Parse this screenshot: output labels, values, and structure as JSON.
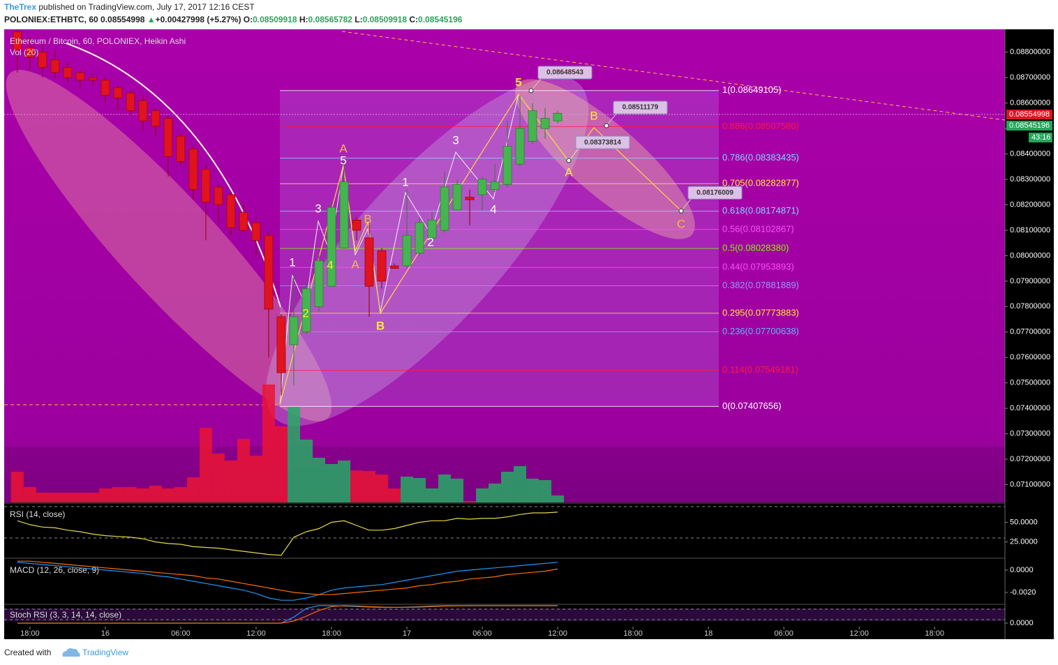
{
  "header": {
    "author": "TheTrex",
    "published": "published on TradingView.com, July 17, 2017 12:16 CEST",
    "symbol": "POLONIEX:ETHBTC, 60",
    "last": "0.08554998",
    "change_arrow": "▲",
    "change": "+0.00427998 (+5.27%)",
    "ohlc": [
      {
        "label": "O:",
        "value": "0.08509918"
      },
      {
        "label": "H:",
        "value": "0.08565782"
      },
      {
        "label": "L:",
        "value": "0.08509918"
      },
      {
        "label": "C:",
        "value": "0.08545196"
      }
    ]
  },
  "chart_data": [
    {
      "type": "candlestick",
      "title": "Ethereum / Bitcoin, 60, POLONIEX, Heikin Ashi",
      "x": [
        -1,
        0,
        1,
        2,
        3,
        4,
        5,
        6,
        7,
        8,
        9,
        10,
        11,
        12,
        13,
        14,
        15,
        16,
        17,
        18,
        19,
        20,
        21,
        22,
        23,
        24,
        25,
        26,
        27,
        28,
        29,
        30,
        31,
        32,
        33,
        34,
        35,
        36,
        37,
        38,
        39,
        40,
        41,
        42
      ],
      "open": [
        0.0888,
        0.0882,
        0.088,
        0.0877,
        0.0874,
        0.0872,
        0.087,
        0.0869,
        0.0866,
        0.0864,
        0.0861,
        0.0857,
        0.0854,
        0.0847,
        0.0842,
        0.0834,
        0.0827,
        0.0824,
        0.0817,
        0.0813,
        0.0808,
        0.0776,
        0.0765,
        0.077,
        0.078,
        0.0788,
        0.0803,
        0.0814,
        0.0807,
        0.0802,
        0.0796,
        0.0796,
        0.0801,
        0.0807,
        0.081,
        0.0818,
        0.0823,
        0.0824,
        0.0826,
        0.0828,
        0.0836,
        0.0845,
        0.085,
        0.0853
      ],
      "high": [
        0.089,
        0.0886,
        0.0883,
        0.0881,
        0.0876,
        0.0873,
        0.0871,
        0.087,
        0.0867,
        0.0865,
        0.0863,
        0.0858,
        0.0855,
        0.0848,
        0.0843,
        0.0836,
        0.0828,
        0.0825,
        0.082,
        0.0815,
        0.0809,
        0.0777,
        0.0793,
        0.079,
        0.0801,
        0.0821,
        0.0839,
        0.0815,
        0.0812,
        0.0803,
        0.0797,
        0.0826,
        0.0815,
        0.0817,
        0.0833,
        0.083,
        0.0826,
        0.0831,
        0.0836,
        0.0853,
        0.0863,
        0.086,
        0.0858,
        0.0857
      ],
      "low": [
        0.0872,
        0.0873,
        0.087,
        0.087,
        0.0868,
        0.0866,
        0.0867,
        0.086,
        0.0857,
        0.0855,
        0.0849,
        0.0847,
        0.0831,
        0.0835,
        0.0822,
        0.0806,
        0.0813,
        0.0808,
        0.0809,
        0.08,
        0.076,
        0.0745,
        0.0749,
        0.0769,
        0.0778,
        0.0788,
        0.0803,
        0.0806,
        0.0776,
        0.0787,
        0.0795,
        0.0795,
        0.08,
        0.0805,
        0.0809,
        0.0818,
        0.0812,
        0.0818,
        0.0825,
        0.0827,
        0.0835,
        0.0844,
        0.0846,
        0.0852
      ],
      "close": [
        0.0881,
        0.0878,
        0.0874,
        0.0872,
        0.087,
        0.0869,
        0.0869,
        0.0863,
        0.0862,
        0.0857,
        0.0853,
        0.0851,
        0.0839,
        0.0837,
        0.0826,
        0.0821,
        0.082,
        0.0811,
        0.081,
        0.0806,
        0.0779,
        0.0754,
        0.0776,
        0.0787,
        0.0798,
        0.0819,
        0.0829,
        0.081,
        0.0788,
        0.079,
        0.0795,
        0.0808,
        0.0813,
        0.0814,
        0.0827,
        0.0828,
        0.0822,
        0.083,
        0.0829,
        0.0843,
        0.085,
        0.0857,
        0.0854,
        0.0856
      ],
      "up_color": "#46b450",
      "down_color": "#e0141e",
      "volume": {
        "name": "Vol (20)",
        "values": [
          44,
          22,
          14,
          14,
          14,
          14,
          14,
          20,
          22,
          22,
          20,
          24,
          20,
          22,
          36,
          107,
          70,
          60,
          91,
          67,
          169,
          109,
          137,
          90,
          64,
          55,
          60,
          46,
          45,
          40,
          20,
          37,
          35,
          20,
          40,
          34,
          2,
          20,
          27,
          44,
          52,
          34,
          32,
          10
        ]
      },
      "xlim": [
        -2.05,
        77.6
      ],
      "xticks": [
        {
          "value": 0,
          "label": "18:00"
        },
        {
          "value": 6,
          "label": "16"
        },
        {
          "value": 12,
          "label": "06:00"
        },
        {
          "value": 18,
          "label": "12:00"
        },
        {
          "value": 24,
          "label": "18:00"
        },
        {
          "value": 30,
          "label": "17"
        },
        {
          "value": 36,
          "label": "06:00"
        },
        {
          "value": 42,
          "label": "12:00"
        },
        {
          "value": 48,
          "label": "18:00"
        },
        {
          "value": 54,
          "label": "18"
        },
        {
          "value": 60,
          "label": "06:00"
        },
        {
          "value": 66,
          "label": "12:00"
        },
        {
          "value": 72,
          "label": "18:00"
        }
      ],
      "ylim": [
        0.0703,
        0.0889
      ],
      "yticks": [
        {
          "value": 0.071,
          "label": "0.07100000"
        },
        {
          "value": 0.072,
          "label": "0.07200000"
        },
        {
          "value": 0.073,
          "label": "0.07300000"
        },
        {
          "value": 0.074,
          "label": "0.07400000"
        },
        {
          "value": 0.075,
          "label": "0.07500000"
        },
        {
          "value": 0.076,
          "label": "0.07600000"
        },
        {
          "value": 0.077,
          "label": "0.07700000"
        },
        {
          "value": 0.078,
          "label": "0.07800000"
        },
        {
          "value": 0.079,
          "label": "0.07900000"
        },
        {
          "value": 0.08,
          "label": "0.08000000"
        },
        {
          "value": 0.081,
          "label": "0.08100000"
        },
        {
          "value": 0.082,
          "label": "0.08200000"
        },
        {
          "value": 0.083,
          "label": "0.08300000"
        },
        {
          "value": 0.084,
          "label": "0.08400000"
        },
        {
          "value": 0.085,
          "label": "0.08500000"
        },
        {
          "value": 0.086,
          "label": "0.08600000"
        },
        {
          "value": 0.087,
          "label": "0.08700000"
        },
        {
          "value": 0.088,
          "label": "0.08800000"
        }
      ],
      "fib_levels": [
        {
          "label": "1(0.08649105)",
          "value": 0.08649105,
          "color": "#ffffff"
        },
        {
          "label": "0.886(0.08507580)",
          "value": 0.0850758,
          "color": "#ff1a40"
        },
        {
          "label": "0.786(0.08383435)",
          "value": 0.08383435,
          "color": "#80d8ff"
        },
        {
          "label": "0.705(0.08282877)",
          "value": 0.08282877,
          "color": "#ffeb3b"
        },
        {
          "label": "0.618(0.08174871)",
          "value": 0.08174871,
          "color": "#80d8ff"
        },
        {
          "label": "0.56(0.08102867)",
          "value": 0.08102867,
          "color": "#ff50ff"
        },
        {
          "label": "0.5(0.08028380)",
          "value": 0.0802838,
          "color": "#7cfc00"
        },
        {
          "label": "0.44(0.07953893)",
          "value": 0.07953893,
          "color": "#ff50ff"
        },
        {
          "label": "0.382(0.07881889)",
          "value": 0.07881889,
          "color": "#8c9eff"
        },
        {
          "label": "0.295(0.07773883)",
          "value": 0.07773883,
          "color": "#ffeb3b"
        },
        {
          "label": "0.236(0.07700638)",
          "value": 0.07700638,
          "color": "#64b5f6"
        },
        {
          "label": "0.114(0.07549181)",
          "value": 0.07549181,
          "color": "#ff1a40"
        },
        {
          "label": "0(0.07407656)",
          "value": 0.07407656,
          "color": "#ffffff"
        }
      ],
      "wave_labels": [
        {
          "text": "1",
          "color": "#ffffff"
        },
        {
          "text": "2",
          "color": "#ffeb3b"
        },
        {
          "text": "3",
          "color": "#ffffff"
        },
        {
          "text": "4",
          "color": "#ffeb3b"
        },
        {
          "text": "5",
          "color": "#ffffff"
        },
        {
          "text": "A",
          "color": "#f5b942"
        },
        {
          "text": "A",
          "color": "#f5b942"
        },
        {
          "text": "B",
          "color": "#f5b942"
        },
        {
          "text": "B",
          "color": "#ffeb3b"
        },
        {
          "text": "1",
          "color": "#ffffff"
        },
        {
          "text": "2",
          "color": "#ffffff"
        },
        {
          "text": "3",
          "color": "#ffffff"
        },
        {
          "text": "4",
          "color": "#ffffff"
        },
        {
          "text": "5",
          "color": "#ffeb3b"
        },
        {
          "text": "A",
          "color": "#ffeb3b"
        },
        {
          "text": "B",
          "color": "#ffeb3b"
        },
        {
          "text": "C",
          "color": "#f5b942"
        }
      ],
      "price_notes": [
        0.08648543,
        0.08511179,
        0.08373814,
        0.08176009
      ],
      "last_price": {
        "value": 0.08554998,
        "color": "#e0141e"
      },
      "close_price": {
        "value": 0.08545196,
        "color": "#26a65b"
      },
      "countdown": "43:16"
    },
    {
      "type": "line",
      "title": "RSI (14, close)",
      "x": [
        -1,
        0,
        1,
        2,
        3,
        4,
        5,
        6,
        7,
        8,
        9,
        10,
        11,
        12,
        13,
        14,
        15,
        16,
        17,
        18,
        19,
        20,
        21,
        22,
        23,
        24,
        25,
        26,
        27,
        28,
        29,
        30,
        31,
        32,
        33,
        34,
        35,
        36,
        37,
        38,
        39,
        40,
        41,
        42
      ],
      "series": [
        {
          "color": "#e6d84a",
          "values": [
            52,
            47,
            44,
            43,
            40,
            38,
            35,
            33,
            32,
            31,
            29,
            25,
            23,
            22,
            19,
            18,
            17,
            15,
            13,
            11,
            9,
            8,
            31,
            38,
            42,
            50,
            52,
            46,
            40,
            40,
            42,
            46,
            50,
            52,
            52,
            55,
            54,
            55,
            55,
            57,
            60,
            62,
            62,
            63
          ]
        }
      ],
      "xlim": [
        -2.05,
        77.6
      ],
      "ylim": [
        4.2,
        73.6
      ],
      "bands": [
        70,
        30
      ],
      "yticks": [
        {
          "value": 50,
          "label": "50.0000"
        },
        {
          "value": 25,
          "label": "25.0000"
        }
      ]
    },
    {
      "type": "line",
      "title": "MACD (12, 26, close, 9)",
      "x": [
        -1,
        0,
        1,
        2,
        3,
        4,
        5,
        6,
        7,
        8,
        9,
        10,
        11,
        12,
        13,
        14,
        15,
        16,
        17,
        18,
        19,
        20,
        21,
        22,
        23,
        24,
        25,
        26,
        27,
        28,
        29,
        30,
        31,
        32,
        33,
        34,
        35,
        36,
        37,
        38,
        39,
        40,
        41,
        42
      ],
      "series": [
        {
          "color": "#2196f3",
          "values": [
            0.0007,
            0.0006,
            0.0005,
            0.0004,
            0.0003,
            0.0002,
            0.0001,
            0,
            -0.0001,
            -0.0002,
            -0.0003,
            -0.0005,
            -0.0006,
            -0.0008,
            -0.001,
            -0.0012,
            -0.0014,
            -0.0016,
            -0.0018,
            -0.0021,
            -0.0025,
            -0.0027,
            -0.0027,
            -0.0025,
            -0.0022,
            -0.0018,
            -0.0016,
            -0.0015,
            -0.0014,
            -0.0013,
            -0.0011,
            -0.0009,
            -0.0007,
            -0.0005,
            -0.0003,
            -0.0001,
            0,
            0.0001,
            0.0002,
            0.0003,
            0.0004,
            0.0005,
            0.0006,
            0.0007
          ]
        },
        {
          "color": "#ff6d00",
          "values": [
            0.0008,
            0.0008,
            0.0007,
            0.0006,
            0.0005,
            0.0004,
            0.0003,
            0.0002,
            0.0001,
            0,
            -0.0001,
            -0.0002,
            -0.0003,
            -0.0004,
            -0.0005,
            -0.0007,
            -0.0008,
            -0.001,
            -0.0012,
            -0.0014,
            -0.0016,
            -0.0018,
            -0.002,
            -0.0021,
            -0.0022,
            -0.0022,
            -0.0021,
            -0.002,
            -0.0019,
            -0.0018,
            -0.0017,
            -0.0016,
            -0.0014,
            -0.0013,
            -0.0011,
            -0.001,
            -0.0008,
            -0.0007,
            -0.0006,
            -0.0004,
            -0.0003,
            -0.0002,
            -0.0001,
            0.0001
          ]
        }
      ],
      "xlim": [
        -2.05,
        77.6
      ],
      "ylim": [
        -0.00306,
        0.00106
      ],
      "yticks": [
        {
          "value": 0,
          "label": "0.0000"
        },
        {
          "value": -0.002,
          "label": "-0.0020"
        }
      ]
    },
    {
      "type": "line",
      "title": "Stoch RSI (3, 3, 14, 14, close)",
      "x": [
        -1,
        0,
        1,
        2,
        3,
        4,
        5,
        6,
        7,
        8,
        9,
        10,
        11,
        12,
        13,
        14,
        15,
        16,
        17,
        18,
        19,
        20,
        21,
        22,
        23,
        24,
        25,
        26,
        27,
        28,
        29,
        30,
        31,
        32,
        33,
        34,
        35,
        36,
        37,
        38,
        39,
        40,
        41,
        42
      ],
      "series": [
        {
          "color": "#2196f3",
          "values": [
            0,
            0,
            0,
            0,
            0,
            0,
            0,
            0,
            0,
            0,
            0,
            0,
            0,
            0,
            0,
            0,
            0,
            0,
            0,
            0,
            0,
            0,
            35,
            85,
            100,
            100,
            98,
            95,
            92,
            90,
            90,
            92,
            95,
            98,
            100,
            100,
            100,
            100,
            100,
            100,
            100,
            100,
            100,
            100
          ]
        },
        {
          "color": "#ff6d00",
          "values": [
            0,
            0,
            0,
            0,
            0,
            0,
            0,
            0,
            0,
            0,
            0,
            0,
            0,
            0,
            0,
            0,
            0,
            0,
            0,
            0,
            0,
            0,
            12,
            40,
            73,
            95,
            100,
            98,
            95,
            92,
            91,
            91,
            92,
            95,
            98,
            99,
            100,
            100,
            100,
            100,
            100,
            100,
            100,
            100
          ]
        }
      ],
      "xlim": [
        -2.05,
        77.6
      ],
      "ylim": [
        -20,
        108
      ],
      "bands": [
        80,
        20
      ],
      "yticks": [
        {
          "value": 0,
          "label": "0.0000"
        }
      ]
    }
  ],
  "footer": {
    "created": "Created with",
    "brand": "TradingView"
  }
}
